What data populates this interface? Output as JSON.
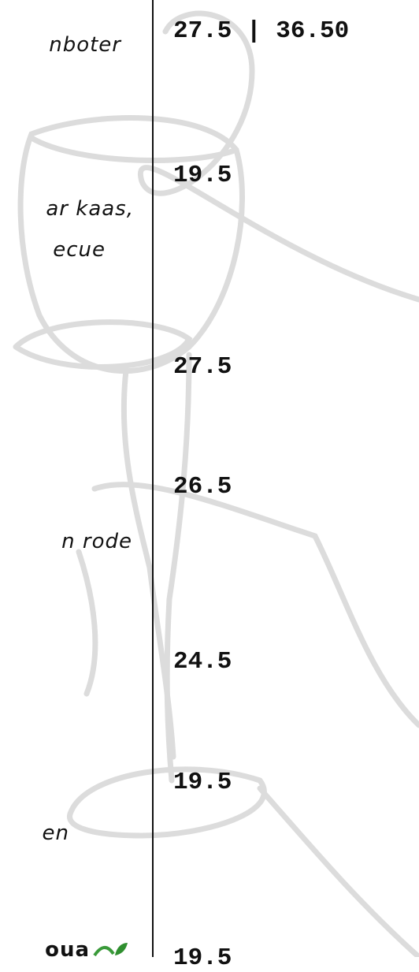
{
  "menu": {
    "descriptions": [
      "nboter",
      "ar kaas,",
      "ecue",
      "n rode",
      "en",
      "oua"
    ],
    "prices": [
      "27.5 | 36.50",
      "19.5",
      "27.5",
      "26.5",
      "24.5",
      "19.5",
      "19.5"
    ]
  }
}
